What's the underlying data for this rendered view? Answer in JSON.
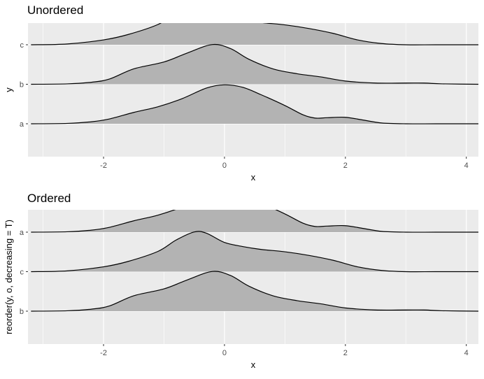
{
  "chart_data": [
    {
      "type": "ridgeline",
      "title": "Unordered",
      "xlabel": "x",
      "ylabel": "y",
      "xlim": [
        -3.25,
        4.2
      ],
      "x_ticks": [
        -2,
        0,
        2,
        4
      ],
      "grid": true,
      "legend": "none",
      "fill_color": "#b3b3b3",
      "categories": [
        "a",
        "b",
        "c"
      ],
      "series": [
        {
          "name": "a",
          "x": [
            -3.2,
            -2.6,
            -2.2,
            -1.9,
            -1.5,
            -1.1,
            -0.7,
            -0.3,
            0.0,
            0.3,
            0.6,
            1.0,
            1.3,
            1.5,
            1.7,
            2.0,
            2.3,
            2.6,
            3.0,
            3.5,
            4.2
          ],
          "density": [
            0.0,
            0.01,
            0.05,
            0.12,
            0.28,
            0.42,
            0.62,
            0.88,
            0.96,
            0.9,
            0.72,
            0.45,
            0.22,
            0.14,
            0.15,
            0.16,
            0.09,
            0.02,
            0.0,
            0.0,
            0.0
          ]
        },
        {
          "name": "b",
          "x": [
            -3.2,
            -2.6,
            -2.2,
            -1.9,
            -1.5,
            -1.0,
            -0.6,
            -0.2,
            0.1,
            0.4,
            0.8,
            1.2,
            1.6,
            2.0,
            2.5,
            3.0,
            3.3,
            3.6,
            4.2
          ],
          "density": [
            0.0,
            0.01,
            0.05,
            0.13,
            0.38,
            0.55,
            0.78,
            0.98,
            0.88,
            0.62,
            0.38,
            0.26,
            0.18,
            0.08,
            0.03,
            0.03,
            0.03,
            0.01,
            0.0
          ]
        },
        {
          "name": "c",
          "x": [
            -3.2,
            -2.6,
            -2.0,
            -1.6,
            -1.1,
            -0.8,
            -0.5,
            -0.3,
            0.0,
            0.3,
            0.6,
            1.0,
            1.4,
            1.8,
            2.2,
            2.6,
            3.0,
            3.5,
            4.2
          ],
          "density": [
            0.0,
            0.02,
            0.12,
            0.25,
            0.5,
            0.78,
            0.98,
            0.95,
            0.72,
            0.62,
            0.55,
            0.49,
            0.4,
            0.28,
            0.12,
            0.03,
            0.0,
            0.0,
            0.0
          ]
        }
      ]
    },
    {
      "type": "ridgeline",
      "title": "Ordered",
      "xlabel": "x",
      "ylabel": "reorder(y, o, decreasing = T)",
      "xlim": [
        -3.25,
        4.2
      ],
      "x_ticks": [
        -2,
        0,
        2,
        4
      ],
      "grid": true,
      "legend": "none",
      "fill_color": "#b3b3b3",
      "categories": [
        "b",
        "c",
        "a"
      ],
      "series": [
        {
          "name": "b",
          "x": [
            -3.2,
            -2.6,
            -2.2,
            -1.9,
            -1.5,
            -1.0,
            -0.6,
            -0.2,
            0.1,
            0.4,
            0.8,
            1.2,
            1.6,
            2.0,
            2.5,
            3.0,
            3.3,
            3.6,
            4.2
          ],
          "density": [
            0.0,
            0.01,
            0.05,
            0.13,
            0.38,
            0.55,
            0.78,
            0.98,
            0.88,
            0.62,
            0.38,
            0.26,
            0.18,
            0.08,
            0.03,
            0.03,
            0.03,
            0.01,
            0.0
          ]
        },
        {
          "name": "c",
          "x": [
            -3.2,
            -2.6,
            -2.0,
            -1.6,
            -1.1,
            -0.8,
            -0.5,
            -0.3,
            0.0,
            0.3,
            0.6,
            1.0,
            1.4,
            1.8,
            2.2,
            2.6,
            3.0,
            3.5,
            4.2
          ],
          "density": [
            0.0,
            0.02,
            0.12,
            0.25,
            0.5,
            0.78,
            0.98,
            0.95,
            0.72,
            0.62,
            0.55,
            0.49,
            0.4,
            0.28,
            0.12,
            0.03,
            0.0,
            0.0,
            0.0
          ]
        },
        {
          "name": "a",
          "x": [
            -3.2,
            -2.6,
            -2.2,
            -1.9,
            -1.5,
            -1.1,
            -0.7,
            -0.3,
            0.0,
            0.3,
            0.6,
            1.0,
            1.3,
            1.5,
            1.7,
            2.0,
            2.3,
            2.6,
            3.0,
            3.5,
            4.2
          ],
          "density": [
            0.0,
            0.01,
            0.05,
            0.12,
            0.28,
            0.42,
            0.62,
            0.88,
            0.96,
            0.9,
            0.72,
            0.45,
            0.22,
            0.14,
            0.15,
            0.16,
            0.09,
            0.02,
            0.0,
            0.0,
            0.0
          ]
        }
      ]
    }
  ]
}
